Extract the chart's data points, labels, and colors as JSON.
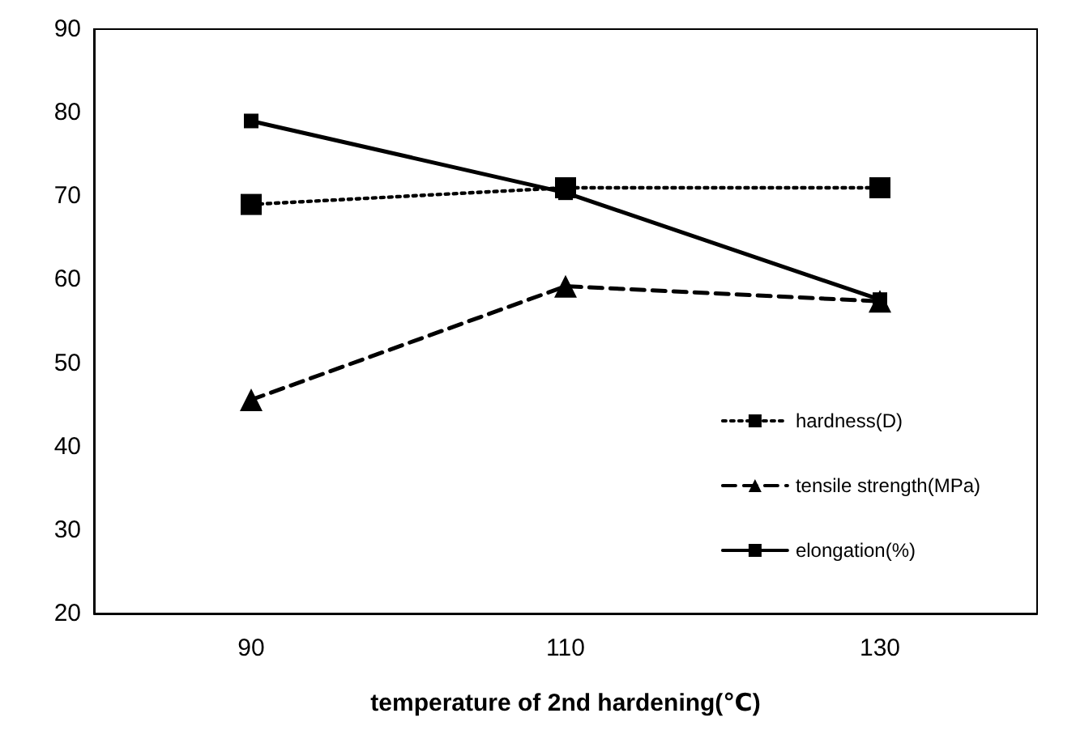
{
  "chart_data": {
    "type": "line",
    "xlabel": "temperature of 2nd hardening(℃)",
    "categories": [
      "90",
      "110",
      "130"
    ],
    "series": [
      {
        "name": "hardness(D)",
        "color": "#000000",
        "values": [
          69,
          71,
          71
        ],
        "marker": "square",
        "line_style": "dotted"
      },
      {
        "name": "tensile strength(MPa)",
        "color": "#000000",
        "values": [
          45.6,
          59.2,
          57.4
        ],
        "marker": "triangle",
        "line_style": "dashed"
      },
      {
        "name": "elongation(%)",
        "color": "#000000",
        "values": [
          79,
          70.4,
          57.6
        ],
        "marker": "square",
        "line_style": "solid"
      }
    ],
    "ylim": [
      20,
      90
    ],
    "yticks": [
      20,
      30,
      40,
      50,
      60,
      70,
      80,
      90
    ],
    "grid": false,
    "legend": "bottom right"
  }
}
